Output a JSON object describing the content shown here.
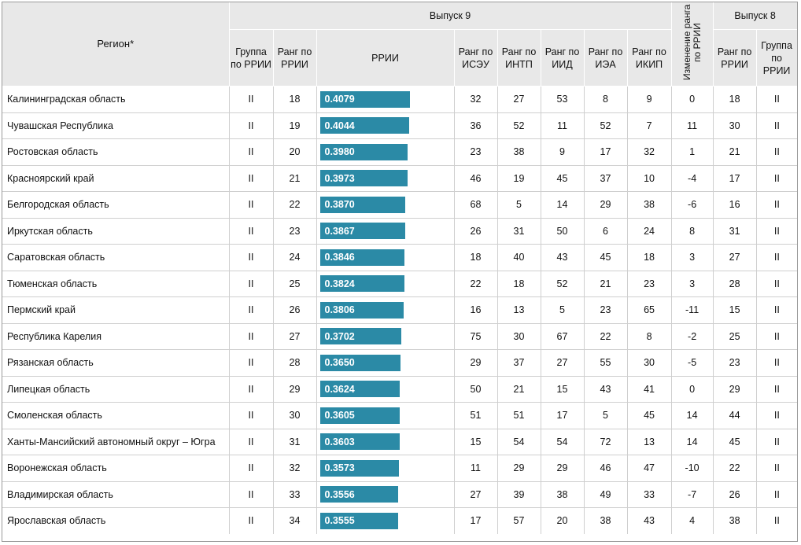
{
  "header": {
    "region": "Регион*",
    "release9": "Выпуск 9",
    "change": "Изменение ранга по РРИИ",
    "release8": "Выпуск 8",
    "group_rrii": "Группа по РРИИ",
    "rank_rrii": "Ранг по РРИИ",
    "rrii": "РРИИ",
    "rank_iseu": "Ранг по ИСЭУ",
    "rank_intp": "Ранг по ИНТП",
    "rank_iid": "Ранг по ИИД",
    "rank_iea": "Ранг по ИЭА",
    "rank_ikip": "Ранг по ИКИП",
    "prev_rank_rrii": "Ранг по РРИИ",
    "prev_group_rrii": "Группа по РРИИ"
  },
  "colors": {
    "bar": "#2b8aa6",
    "header_bg": "#e8e8e8"
  },
  "rows": [
    {
      "region": "Калининградская область",
      "group": "II",
      "rank": "18",
      "rrii": "0.4079",
      "iseu": "32",
      "intp": "27",
      "iid": "53",
      "iea": "8",
      "ikip": "9",
      "change": "0",
      "prev_rank": "18",
      "prev_group": "II"
    },
    {
      "region": "Чувашская Республика",
      "group": "II",
      "rank": "19",
      "rrii": "0.4044",
      "iseu": "36",
      "intp": "52",
      "iid": "11",
      "iea": "52",
      "ikip": "7",
      "change": "11",
      "prev_rank": "30",
      "prev_group": "II"
    },
    {
      "region": "Ростовская область",
      "group": "II",
      "rank": "20",
      "rrii": "0.3980",
      "iseu": "23",
      "intp": "38",
      "iid": "9",
      "iea": "17",
      "ikip": "32",
      "change": "1",
      "prev_rank": "21",
      "prev_group": "II"
    },
    {
      "region": "Красноярский край",
      "group": "II",
      "rank": "21",
      "rrii": "0.3973",
      "iseu": "46",
      "intp": "19",
      "iid": "45",
      "iea": "37",
      "ikip": "10",
      "change": "-4",
      "prev_rank": "17",
      "prev_group": "II"
    },
    {
      "region": "Белгородская область",
      "group": "II",
      "rank": "22",
      "rrii": "0.3870",
      "iseu": "68",
      "intp": "5",
      "iid": "14",
      "iea": "29",
      "ikip": "38",
      "change": "-6",
      "prev_rank": "16",
      "prev_group": "II"
    },
    {
      "region": "Иркутская область",
      "group": "II",
      "rank": "23",
      "rrii": "0.3867",
      "iseu": "26",
      "intp": "31",
      "iid": "50",
      "iea": "6",
      "ikip": "24",
      "change": "8",
      "prev_rank": "31",
      "prev_group": "II"
    },
    {
      "region": "Саратовская область",
      "group": "II",
      "rank": "24",
      "rrii": "0.3846",
      "iseu": "18",
      "intp": "40",
      "iid": "43",
      "iea": "45",
      "ikip": "18",
      "change": "3",
      "prev_rank": "27",
      "prev_group": "II"
    },
    {
      "region": "Тюменская область",
      "group": "II",
      "rank": "25",
      "rrii": "0.3824",
      "iseu": "22",
      "intp": "18",
      "iid": "52",
      "iea": "21",
      "ikip": "23",
      "change": "3",
      "prev_rank": "28",
      "prev_group": "II"
    },
    {
      "region": "Пермский край",
      "group": "II",
      "rank": "26",
      "rrii": "0.3806",
      "iseu": "16",
      "intp": "13",
      "iid": "5",
      "iea": "23",
      "ikip": "65",
      "change": "-11",
      "prev_rank": "15",
      "prev_group": "II"
    },
    {
      "region": "Республика Карелия",
      "group": "II",
      "rank": "27",
      "rrii": "0.3702",
      "iseu": "75",
      "intp": "30",
      "iid": "67",
      "iea": "22",
      "ikip": "8",
      "change": "-2",
      "prev_rank": "25",
      "prev_group": "II"
    },
    {
      "region": "Рязанская область",
      "group": "II",
      "rank": "28",
      "rrii": "0.3650",
      "iseu": "29",
      "intp": "37",
      "iid": "27",
      "iea": "55",
      "ikip": "30",
      "change": "-5",
      "prev_rank": "23",
      "prev_group": "II"
    },
    {
      "region": "Липецкая область",
      "group": "II",
      "rank": "29",
      "rrii": "0.3624",
      "iseu": "50",
      "intp": "21",
      "iid": "15",
      "iea": "43",
      "ikip": "41",
      "change": "0",
      "prev_rank": "29",
      "prev_group": "II"
    },
    {
      "region": "Смоленская область",
      "group": "II",
      "rank": "30",
      "rrii": "0.3605",
      "iseu": "51",
      "intp": "51",
      "iid": "17",
      "iea": "5",
      "ikip": "45",
      "change": "14",
      "prev_rank": "44",
      "prev_group": "II"
    },
    {
      "region": "Ханты-Мансийский автономный округ – Югра",
      "group": "II",
      "rank": "31",
      "rrii": "0.3603",
      "iseu": "15",
      "intp": "54",
      "iid": "54",
      "iea": "72",
      "ikip": "13",
      "change": "14",
      "prev_rank": "45",
      "prev_group": "II"
    },
    {
      "region": "Воронежская область",
      "group": "II",
      "rank": "32",
      "rrii": "0.3573",
      "iseu": "11",
      "intp": "29",
      "iid": "29",
      "iea": "46",
      "ikip": "47",
      "change": "-10",
      "prev_rank": "22",
      "prev_group": "II"
    },
    {
      "region": "Владимирская область",
      "group": "II",
      "rank": "33",
      "rrii": "0.3556",
      "iseu": "27",
      "intp": "39",
      "iid": "38",
      "iea": "49",
      "ikip": "33",
      "change": "-7",
      "prev_rank": "26",
      "prev_group": "II"
    },
    {
      "region": "Ярославская область",
      "group": "II",
      "rank": "34",
      "rrii": "0.3555",
      "iseu": "17",
      "intp": "57",
      "iid": "20",
      "iea": "38",
      "ikip": "43",
      "change": "4",
      "prev_rank": "38",
      "prev_group": "II"
    }
  ]
}
